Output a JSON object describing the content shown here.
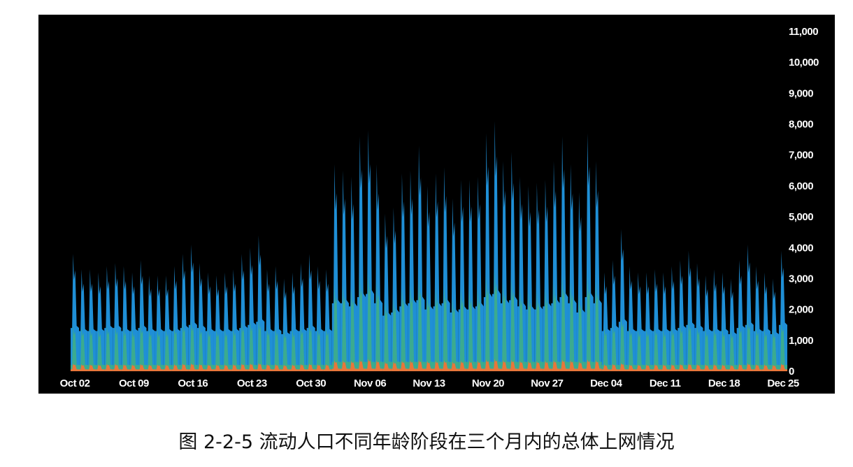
{
  "caption": "图 2-2-5  流动人口不同年龄阶段在三个月内的总体上网情况",
  "chart_data": {
    "type": "area",
    "title": "",
    "xlabel": "",
    "ylabel": "",
    "ylim": [
      0,
      11000
    ],
    "y_ticks": [
      0,
      1000,
      2000,
      3000,
      4000,
      5000,
      6000,
      7000,
      8000,
      9000,
      10000,
      11000
    ],
    "y_tick_labels": [
      "0",
      "1,000",
      "2,000",
      "3,000",
      "4,000",
      "5,000",
      "6,000",
      "7,000",
      "8,000",
      "9,000",
      "10,000",
      "11,000"
    ],
    "x_tick_labels": [
      "Oct 02",
      "Oct 09",
      "Oct 16",
      "Oct 23",
      "Oct 30",
      "Nov 06",
      "Nov 13",
      "Nov 20",
      "Nov 27",
      "Dec 04",
      "Dec 11",
      "Dec 18",
      "Dec 25"
    ],
    "y_axis_position": "right",
    "grid": false,
    "stacking": "overlaid",
    "x": [
      "Oct 02",
      "Oct 03",
      "Oct 04",
      "Oct 05",
      "Oct 06",
      "Oct 07",
      "Oct 08",
      "Oct 09",
      "Oct 10",
      "Oct 11",
      "Oct 12",
      "Oct 13",
      "Oct 14",
      "Oct 15",
      "Oct 16",
      "Oct 17",
      "Oct 18",
      "Oct 19",
      "Oct 20",
      "Oct 21",
      "Oct 22",
      "Oct 23",
      "Oct 24",
      "Oct 25",
      "Oct 26",
      "Oct 27",
      "Oct 28",
      "Oct 29",
      "Oct 30",
      "Oct 31",
      "Nov 01",
      "Nov 02",
      "Nov 03",
      "Nov 04",
      "Nov 05",
      "Nov 06",
      "Nov 07",
      "Nov 08",
      "Nov 09",
      "Nov 10",
      "Nov 11",
      "Nov 12",
      "Nov 13",
      "Nov 14",
      "Nov 15",
      "Nov 16",
      "Nov 17",
      "Nov 18",
      "Nov 19",
      "Nov 20",
      "Nov 21",
      "Nov 22",
      "Nov 23",
      "Nov 24",
      "Nov 25",
      "Nov 26",
      "Nov 27",
      "Nov 28",
      "Nov 29",
      "Nov 30",
      "Dec 01",
      "Dec 02",
      "Dec 03",
      "Dec 04",
      "Dec 05",
      "Dec 06",
      "Dec 07",
      "Dec 08",
      "Dec 09",
      "Dec 10",
      "Dec 11",
      "Dec 12",
      "Dec 13",
      "Dec 14",
      "Dec 15",
      "Dec 16",
      "Dec 17",
      "Dec 18",
      "Dec 19",
      "Dec 20",
      "Dec 21",
      "Dec 22",
      "Dec 23",
      "Dec 24",
      "Dec 25"
    ],
    "series": [
      {
        "color": "#1f8fd6",
        "daily_peak": [
          3800,
          3300,
          3300,
          3200,
          3400,
          3500,
          3400,
          3200,
          3600,
          3100,
          3100,
          3100,
          3400,
          3800,
          4100,
          3500,
          3200,
          3100,
          3200,
          3300,
          3800,
          4000,
          4400,
          3300,
          3400,
          3000,
          3200,
          3500,
          3800,
          3400,
          3300,
          6700,
          6500,
          6300,
          7600,
          7800,
          6700,
          5100,
          5300,
          6400,
          6500,
          7300,
          6000,
          6400,
          6600,
          5600,
          6200,
          6200,
          6300,
          7700,
          8100,
          6800,
          7100,
          6300,
          6000,
          6100,
          6200,
          6800,
          7600,
          6700,
          5800,
          7700,
          6800,
          3200,
          3600,
          4600,
          3400,
          3200,
          3200,
          3300,
          3200,
          3400,
          3600,
          3900,
          3500,
          3100,
          3300,
          3200,
          3000,
          3600,
          4100,
          3400,
          3200,
          3000,
          3900
        ],
        "daily_trough": [
          1400,
          1300,
          1300,
          1300,
          1400,
          1400,
          1300,
          1300,
          1400,
          1300,
          1300,
          1300,
          1300,
          1400,
          1500,
          1400,
          1300,
          1300,
          1300,
          1300,
          1400,
          1500,
          1600,
          1300,
          1300,
          1200,
          1300,
          1300,
          1400,
          1300,
          1300,
          2200,
          2200,
          2100,
          2400,
          2500,
          2200,
          1800,
          1900,
          2100,
          2200,
          2300,
          2000,
          2100,
          2200,
          1900,
          2000,
          2000,
          2100,
          2400,
          2500,
          2200,
          2300,
          2100,
          2000,
          2000,
          2100,
          2200,
          2400,
          2200,
          1900,
          2400,
          2200,
          1300,
          1400,
          1600,
          1300,
          1300,
          1300,
          1300,
          1300,
          1300,
          1400,
          1500,
          1400,
          1300,
          1300,
          1300,
          1200,
          1400,
          1500,
          1300,
          1300,
          1200,
          1500
        ]
      },
      {
        "color": "#3bab8f",
        "daily_peak": [
          1500,
          1450,
          1450,
          1400,
          1500,
          1500,
          1450,
          1400,
          1550,
          1400,
          1400,
          1400,
          1500,
          1600,
          1650,
          1500,
          1400,
          1400,
          1400,
          1450,
          1600,
          1650,
          1700,
          1450,
          1450,
          1350,
          1400,
          1500,
          1600,
          1450,
          1450,
          2800,
          2800,
          2700,
          3100,
          3200,
          2900,
          2300,
          2400,
          2700,
          2800,
          3000,
          2600,
          2700,
          2800,
          2400,
          2700,
          2700,
          2700,
          3100,
          3300,
          2900,
          3000,
          2700,
          2600,
          2600,
          2700,
          2900,
          3100,
          2900,
          2500,
          3100,
          2900,
          1450,
          1550,
          1800,
          1450,
          1400,
          1400,
          1450,
          1400,
          1450,
          1550,
          1650,
          1500,
          1400,
          1450,
          1400,
          1350,
          1550,
          1700,
          1450,
          1400,
          1350,
          1600
        ],
        "daily_trough": [
          200,
          200,
          200,
          200,
          200,
          200,
          200,
          200,
          200,
          200,
          200,
          200,
          200,
          200,
          200,
          200,
          200,
          200,
          200,
          200,
          200,
          200,
          200,
          200,
          200,
          200,
          200,
          200,
          200,
          200,
          200,
          300,
          300,
          300,
          300,
          300,
          300,
          300,
          300,
          300,
          300,
          300,
          300,
          300,
          300,
          300,
          300,
          300,
          300,
          300,
          300,
          300,
          300,
          300,
          300,
          300,
          300,
          300,
          300,
          300,
          300,
          300,
          300,
          200,
          200,
          200,
          200,
          200,
          200,
          200,
          200,
          200,
          200,
          200,
          200,
          200,
          200,
          200,
          200,
          200,
          200,
          200,
          200,
          200,
          200
        ]
      },
      {
        "color": "#e8763a",
        "daily_peak": [
          250,
          230,
          230,
          220,
          240,
          240,
          230,
          220,
          240,
          220,
          220,
          220,
          230,
          250,
          260,
          240,
          220,
          220,
          220,
          230,
          250,
          260,
          270,
          230,
          230,
          210,
          220,
          240,
          250,
          230,
          230,
          350,
          350,
          340,
          380,
          400,
          360,
          300,
          310,
          340,
          350,
          370,
          330,
          340,
          350,
          310,
          340,
          340,
          340,
          380,
          400,
          360,
          370,
          340,
          330,
          330,
          340,
          360,
          380,
          360,
          320,
          380,
          360,
          220,
          240,
          270,
          220,
          220,
          220,
          230,
          220,
          230,
          240,
          250,
          230,
          220,
          230,
          220,
          210,
          240,
          260,
          230,
          220,
          210,
          250
        ],
        "daily_trough": [
          60,
          60,
          60,
          60,
          60,
          60,
          60,
          60,
          60,
          60,
          60,
          60,
          60,
          60,
          60,
          60,
          60,
          60,
          60,
          60,
          60,
          60,
          60,
          60,
          60,
          60,
          60,
          60,
          60,
          60,
          60,
          80,
          80,
          80,
          80,
          80,
          80,
          80,
          80,
          80,
          80,
          80,
          80,
          80,
          80,
          80,
          80,
          80,
          80,
          80,
          80,
          80,
          80,
          80,
          80,
          80,
          80,
          80,
          80,
          80,
          80,
          80,
          80,
          60,
          60,
          60,
          60,
          60,
          60,
          60,
          60,
          60,
          60,
          60,
          60,
          60,
          60,
          60,
          60,
          60,
          60,
          60,
          60,
          60,
          60
        ]
      }
    ]
  }
}
